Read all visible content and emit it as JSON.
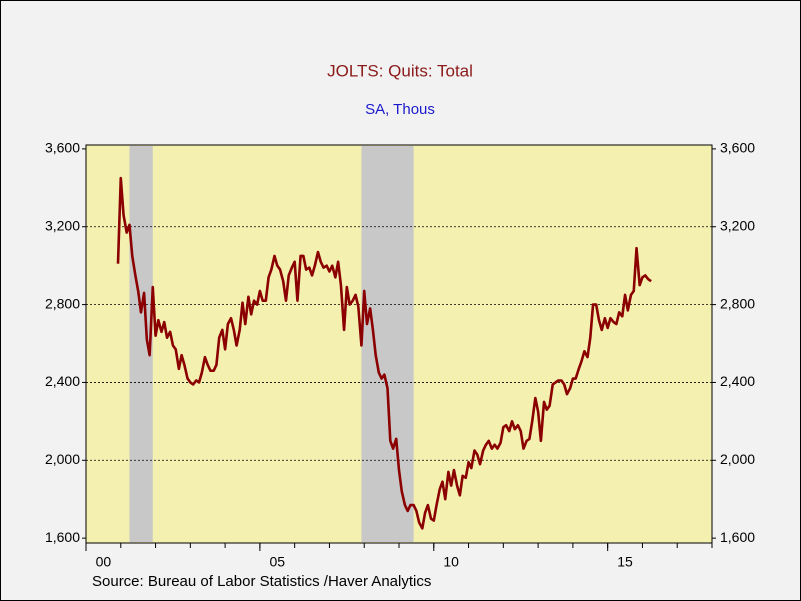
{
  "chart_data": {
    "type": "line",
    "title": "JOLTS: Quits: Total",
    "subtitle": "SA, Thous",
    "source": "Source:  Bureau of Labor Statistics /Haver Analytics",
    "xlim": [
      2000,
      2018
    ],
    "xticks": [
      {
        "value": 2000,
        "label": "00"
      },
      {
        "value": 2005,
        "label": "05"
      },
      {
        "value": 2010,
        "label": "10"
      },
      {
        "value": 2015,
        "label": "15"
      }
    ],
    "xminor_ticks": [
      2000,
      2001,
      2002,
      2003,
      2004,
      2005,
      2006,
      2007,
      2008,
      2009,
      2010,
      2011,
      2012,
      2013,
      2014,
      2015,
      2016,
      2017,
      2018
    ],
    "ylim": [
      1575,
      3620
    ],
    "yticks": [
      {
        "value": 1600,
        "label": "1,600"
      },
      {
        "value": 2000,
        "label": "2,000"
      },
      {
        "value": 2400,
        "label": "2,400"
      },
      {
        "value": 2800,
        "label": "2,800"
      },
      {
        "value": 3200,
        "label": "3,200"
      },
      {
        "value": 3600,
        "label": "3,600"
      }
    ],
    "y2lim": [
      1575,
      3620
    ],
    "grid": true,
    "plot_color": "#f4f0b0",
    "shaded_regions": [
      [
        2001.25,
        2001.92
      ],
      [
        2007.92,
        2009.42
      ]
    ],
    "shade_color": "#c8c8c8",
    "x": [
      2000.92,
      2001.0,
      2001.08,
      2001.17,
      2001.25,
      2001.33,
      2001.42,
      2001.5,
      2001.58,
      2001.67,
      2001.75,
      2001.83,
      2001.92,
      2002.0,
      2002.08,
      2002.17,
      2002.25,
      2002.33,
      2002.42,
      2002.5,
      2002.58,
      2002.67,
      2002.75,
      2002.83,
      2002.92,
      2003.0,
      2003.08,
      2003.17,
      2003.25,
      2003.33,
      2003.42,
      2003.5,
      2003.58,
      2003.67,
      2003.75,
      2003.83,
      2003.92,
      2004.0,
      2004.08,
      2004.17,
      2004.25,
      2004.33,
      2004.42,
      2004.5,
      2004.58,
      2004.67,
      2004.75,
      2004.83,
      2004.92,
      2005.0,
      2005.08,
      2005.17,
      2005.25,
      2005.33,
      2005.42,
      2005.5,
      2005.58,
      2005.67,
      2005.75,
      2005.83,
      2005.92,
      2006.0,
      2006.08,
      2006.17,
      2006.25,
      2006.33,
      2006.42,
      2006.5,
      2006.58,
      2006.67,
      2006.75,
      2006.83,
      2006.92,
      2007.0,
      2007.08,
      2007.17,
      2007.25,
      2007.33,
      2007.42,
      2007.5,
      2007.58,
      2007.67,
      2007.75,
      2007.83,
      2007.92,
      2008.0,
      2008.08,
      2008.17,
      2008.25,
      2008.33,
      2008.42,
      2008.5,
      2008.58,
      2008.67,
      2008.75,
      2008.83,
      2008.92,
      2009.0,
      2009.08,
      2009.17,
      2009.25,
      2009.33,
      2009.42,
      2009.5,
      2009.58,
      2009.67,
      2009.75,
      2009.83,
      2009.92,
      2010.0,
      2010.08,
      2010.17,
      2010.25,
      2010.33,
      2010.42,
      2010.5,
      2010.58,
      2010.67,
      2010.75,
      2010.83,
      2010.92,
      2011.0,
      2011.08,
      2011.17,
      2011.25,
      2011.33,
      2011.42,
      2011.5,
      2011.58,
      2011.67,
      2011.75,
      2011.83,
      2011.92,
      2012.0,
      2012.08,
      2012.17,
      2012.25,
      2012.33,
      2012.42,
      2012.5,
      2012.58,
      2012.67,
      2012.75,
      2012.83,
      2012.92,
      2013.0,
      2013.08,
      2013.17,
      2013.25,
      2013.33,
      2013.42,
      2013.5,
      2013.58,
      2013.67,
      2013.75,
      2013.83,
      2013.92,
      2014.0,
      2014.08,
      2014.17,
      2014.25,
      2014.33,
      2014.42,
      2014.5,
      2014.58,
      2014.67,
      2014.75,
      2014.83,
      2014.92,
      2015.0,
      2015.08,
      2015.17,
      2015.25,
      2015.33,
      2015.42,
      2015.5,
      2015.58,
      2015.67,
      2015.75,
      2015.83,
      2015.92,
      2016.0,
      2016.08,
      2016.17,
      2016.25
    ],
    "series": [
      {
        "color": "#8b0000",
        "values": [
          3010,
          3450,
          3260,
          3170,
          3210,
          3050,
          2950,
          2870,
          2760,
          2860,
          2620,
          2540,
          2890,
          2640,
          2720,
          2660,
          2710,
          2630,
          2660,
          2590,
          2570,
          2470,
          2540,
          2490,
          2420,
          2400,
          2390,
          2410,
          2400,
          2450,
          2530,
          2490,
          2460,
          2460,
          2490,
          2630,
          2670,
          2570,
          2700,
          2730,
          2670,
          2590,
          2670,
          2810,
          2700,
          2840,
          2750,
          2820,
          2800,
          2870,
          2820,
          2820,
          2940,
          2980,
          3050,
          3000,
          2980,
          2920,
          2820,
          2950,
          2990,
          3020,
          2820,
          3050,
          3050,
          2980,
          2990,
          2950,
          3000,
          3070,
          3020,
          2990,
          3000,
          2970,
          3000,
          2940,
          3020,
          2900,
          2670,
          2890,
          2800,
          2820,
          2850,
          2790,
          2590,
          2870,
          2700,
          2780,
          2670,
          2540,
          2450,
          2420,
          2440,
          2370,
          2100,
          2060,
          2110,
          1950,
          1840,
          1770,
          1740,
          1770,
          1770,
          1740,
          1680,
          1650,
          1730,
          1770,
          1700,
          1690,
          1770,
          1850,
          1890,
          1800,
          1940,
          1870,
          1950,
          1870,
          1820,
          1920,
          1910,
          1990,
          1960,
          2050,
          2030,
          1980,
          2050,
          2080,
          2100,
          2060,
          2080,
          2060,
          2090,
          2170,
          2180,
          2150,
          2200,
          2160,
          2180,
          2150,
          2060,
          2100,
          2110,
          2200,
          2320,
          2250,
          2100,
          2300,
          2260,
          2280,
          2390,
          2400,
          2410,
          2410,
          2390,
          2340,
          2370,
          2420,
          2420,
          2470,
          2510,
          2560,
          2530,
          2630,
          2800,
          2800,
          2720,
          2670,
          2730,
          2680,
          2730,
          2710,
          2700,
          2760,
          2740,
          2850,
          2770,
          2850,
          2870,
          3090,
          2900,
          2940,
          2950,
          2930,
          2920
        ]
      }
    ]
  }
}
